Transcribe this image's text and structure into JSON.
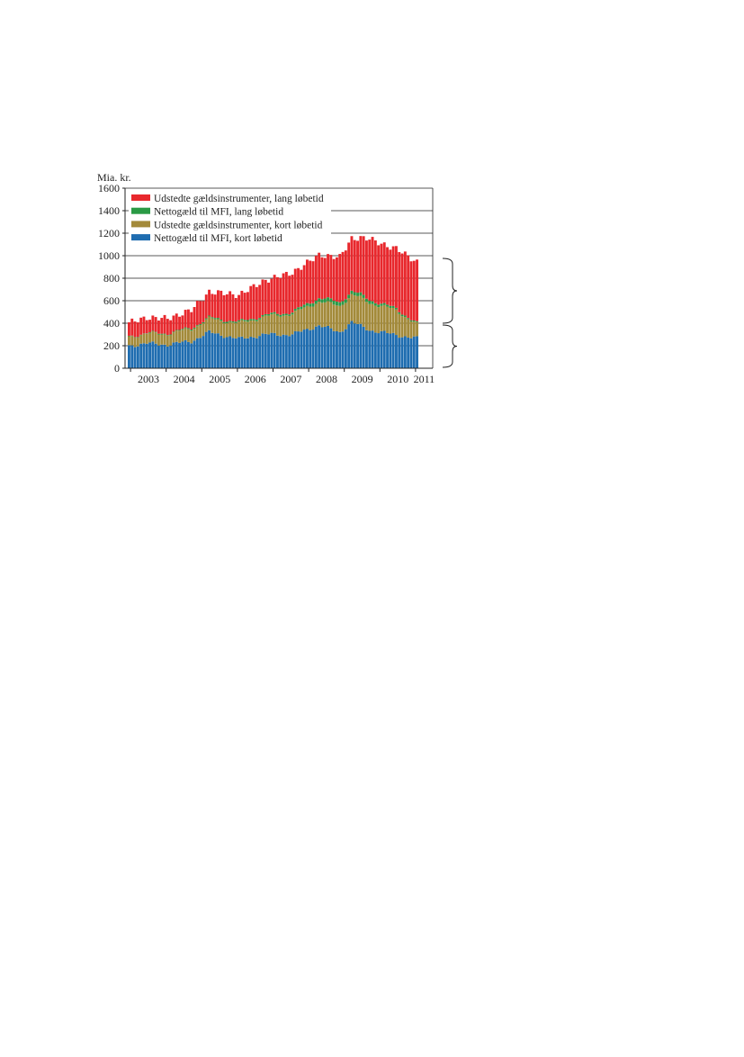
{
  "chart_data": {
    "type": "bar",
    "stacked": true,
    "ylabel": "Mia. kr.",
    "ylim": [
      0,
      1600
    ],
    "yticks": [
      0,
      200,
      400,
      600,
      800,
      1000,
      1200,
      1400,
      1600
    ],
    "grid": true,
    "legend_position": "top-left",
    "x_labels": [
      "2003",
      "2004",
      "2005",
      "2006",
      "2007",
      "2008",
      "2009",
      "2010",
      "2011"
    ],
    "x_start": "2002-12",
    "n_periods": 98,
    "series": [
      {
        "name": "Udstedte gældsinstrumenter, lang løbetid",
        "color": "#e8282d",
        "key": [
          {
            "x": "2002-12",
            "y": 120
          },
          {
            "x": "2003-06",
            "y": 140
          },
          {
            "x": "2004-01",
            "y": 130
          },
          {
            "x": "2004-09",
            "y": 160
          },
          {
            "x": "2005-03",
            "y": 230
          },
          {
            "x": "2006-01",
            "y": 240
          },
          {
            "x": "2006-10",
            "y": 310
          },
          {
            "x": "2007-07",
            "y": 350
          },
          {
            "x": "2008-04",
            "y": 380
          },
          {
            "x": "2008-11",
            "y": 400
          },
          {
            "x": "2009-03",
            "y": 470
          },
          {
            "x": "2009-09",
            "y": 540
          },
          {
            "x": "2010-05",
            "y": 530
          },
          {
            "x": "2011-02",
            "y": 550
          }
        ]
      },
      {
        "name": "Nettogæld til MFI, lang løbetid",
        "color": "#2a9a45",
        "key": [
          {
            "x": "2002-12",
            "y": 3
          },
          {
            "x": "2006-01",
            "y": 12
          },
          {
            "x": "2007-06",
            "y": 15
          },
          {
            "x": "2008-06",
            "y": 35
          },
          {
            "x": "2009-06",
            "y": 30
          },
          {
            "x": "2010-06",
            "y": 15
          },
          {
            "x": "2011-02",
            "y": 8
          }
        ]
      },
      {
        "name": "Udstedte gældsinstrumenter, kort løbetid",
        "color": "#a38a3a",
        "key": [
          {
            "x": "2002-12",
            "y": 80
          },
          {
            "x": "2004-01",
            "y": 95
          },
          {
            "x": "2005-03",
            "y": 120
          },
          {
            "x": "2006-06",
            "y": 150
          },
          {
            "x": "2007-06",
            "y": 180
          },
          {
            "x": "2008-06",
            "y": 220
          },
          {
            "x": "2009-06",
            "y": 250
          },
          {
            "x": "2010-06",
            "y": 220
          },
          {
            "x": "2011-02",
            "y": 110
          }
        ]
      },
      {
        "name": "Nettogæld til MFI, kort løbetid",
        "color": "#1f6db0",
        "key": [
          {
            "x": "2002-12",
            "y": 200
          },
          {
            "x": "2003-06",
            "y": 220
          },
          {
            "x": "2004-01",
            "y": 210
          },
          {
            "x": "2004-09",
            "y": 240
          },
          {
            "x": "2005-03",
            "y": 320
          },
          {
            "x": "2006-01",
            "y": 260
          },
          {
            "x": "2006-10",
            "y": 300
          },
          {
            "x": "2007-07",
            "y": 300
          },
          {
            "x": "2008-04",
            "y": 380
          },
          {
            "x": "2008-11",
            "y": 320
          },
          {
            "x": "2009-03",
            "y": 410
          },
          {
            "x": "2009-09",
            "y": 340
          },
          {
            "x": "2010-05",
            "y": 300
          },
          {
            "x": "2011-02",
            "y": 260
          }
        ]
      }
    ]
  }
}
